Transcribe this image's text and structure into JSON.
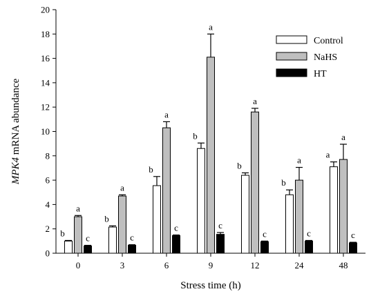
{
  "chart_data": {
    "type": "bar",
    "xlabel": "Stress time (h)",
    "ylabel_italic": "MPK4",
    "ylabel_rest": " mRNA abundance",
    "ylim": [
      0,
      20
    ],
    "yticks": [
      "0",
      "2",
      "4",
      "6",
      "8",
      "10",
      "12",
      "14",
      "16",
      "18",
      "20"
    ],
    "categories": [
      "0",
      "3",
      "6",
      "9",
      "12",
      "24",
      "48"
    ],
    "legend_position": "top-right",
    "series": [
      {
        "name": "Control",
        "color": "#ffffff",
        "values": [
          1.0,
          2.15,
          5.55,
          8.6,
          6.4,
          4.8,
          7.1
        ],
        "errors": [
          0.05,
          0.1,
          0.75,
          0.45,
          0.2,
          0.4,
          0.4
        ],
        "labels": [
          "b",
          "b",
          "b",
          "b",
          "b",
          "b",
          "a"
        ]
      },
      {
        "name": "NaHS",
        "color": "#bfbfbf",
        "values": [
          3.0,
          4.7,
          10.3,
          16.1,
          11.6,
          6.0,
          7.7
        ],
        "errors": [
          0.1,
          0.1,
          0.5,
          1.9,
          0.3,
          1.05,
          1.25
        ],
        "labels": [
          "a",
          "a",
          "a",
          "a",
          "a",
          "a",
          "a"
        ]
      },
      {
        "name": "HT",
        "color": "#000000",
        "values": [
          0.6,
          0.65,
          1.45,
          1.55,
          0.95,
          1.0,
          0.85
        ],
        "errors": [
          0.05,
          0.05,
          0.05,
          0.15,
          0.05,
          0.05,
          0.05
        ],
        "labels": [
          "c",
          "c",
          "c",
          "c",
          "c",
          "c",
          "c"
        ]
      }
    ]
  }
}
